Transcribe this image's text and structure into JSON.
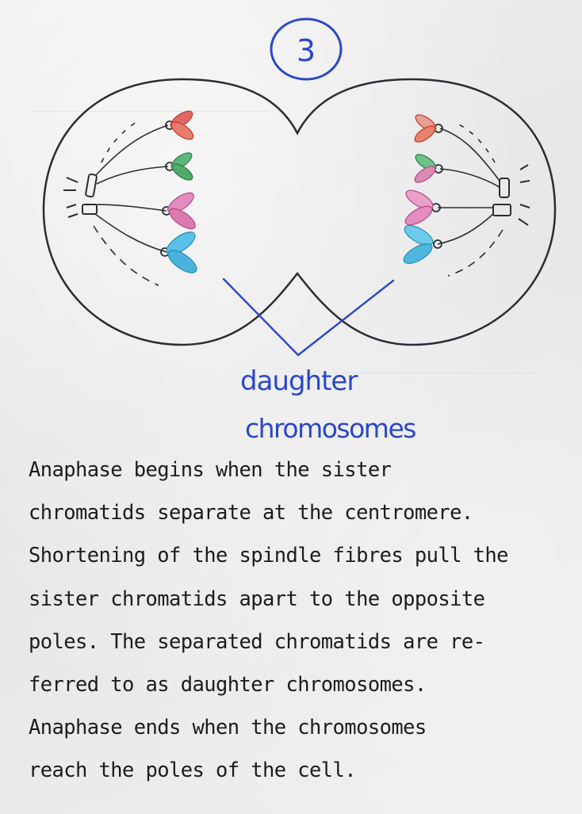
{
  "diagram": {
    "step_number": "3",
    "label_line1": "daughter",
    "label_line2": "chromosomes",
    "ink_colors": {
      "outline": "#2a2d33",
      "blue": "#2b47c8",
      "red": "#d9453e",
      "green": "#3f9a5c",
      "pink": "#d66aa8",
      "cyan": "#37a9d6"
    }
  },
  "caption": {
    "lines": [
      "Anaphase begins when the sister",
      "chromatids separate at the centromere.",
      "Shortening of the spindle fibres pull the",
      "sister chromatids apart to the opposite",
      "poles. The separated chromatids are re-",
      "ferred to as daughter chromosomes.",
      "Anaphase ends when the chromosomes",
      "reach the poles of the cell."
    ]
  }
}
